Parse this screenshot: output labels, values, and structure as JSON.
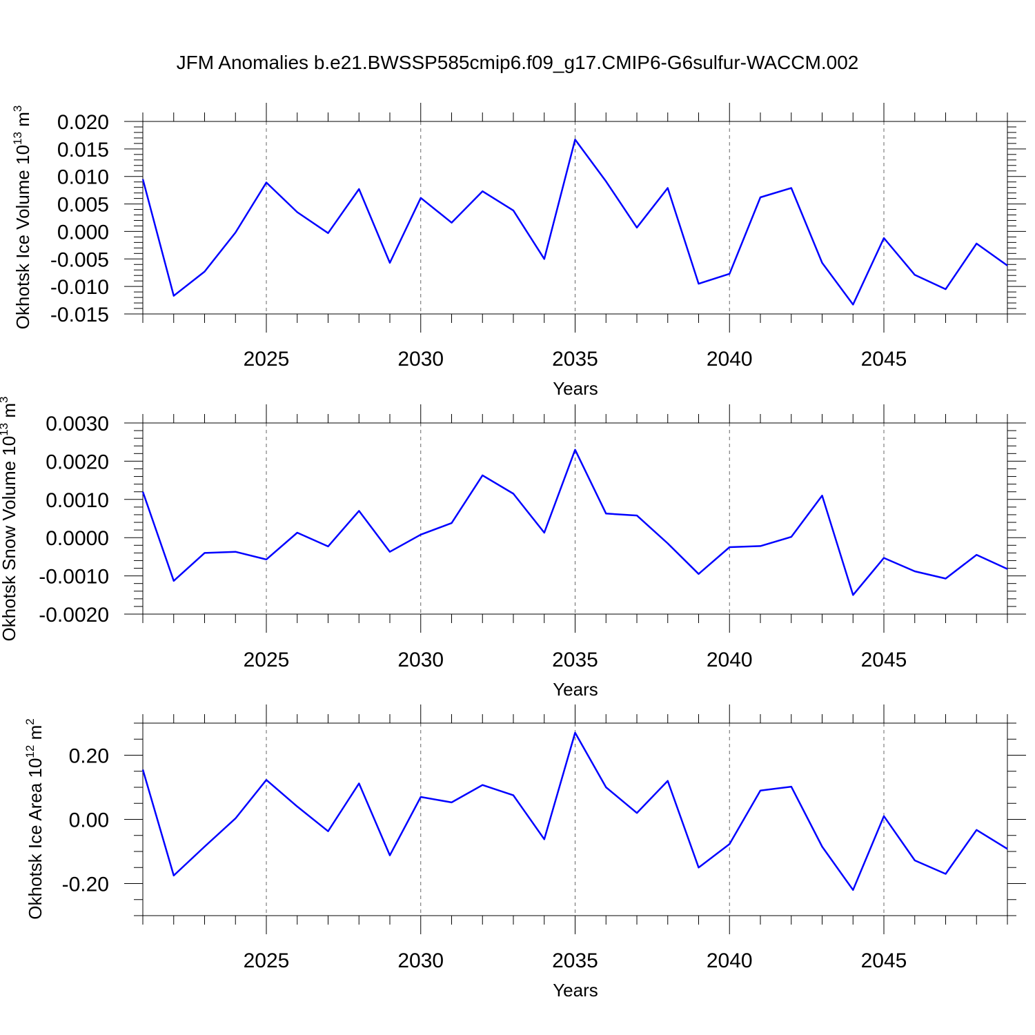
{
  "title": "JFM Anomalies b.e21.BWSSP585cmip6.f09_g17.CMIP6-G6sulfur-WACCM.002",
  "line_color": "#0000ff",
  "chart_data": [
    {
      "type": "line",
      "xlabel": "Years",
      "ylabel": {
        "text": "Okhotsk Ice Volume 10",
        "exp": "13",
        "unit": "m",
        "unit_exp": "3"
      },
      "xlim": [
        2021,
        2049
      ],
      "ylim": [
        -0.015,
        0.02
      ],
      "yticks": [
        -0.015,
        -0.01,
        -0.005,
        0.0,
        0.005,
        0.01,
        0.015,
        0.02
      ],
      "ytick_labels": [
        "-0.015",
        "-0.010",
        "-0.005",
        "0.000",
        "0.005",
        "0.010",
        "0.015",
        "0.020"
      ],
      "yminor": 0.001,
      "xticks": [
        2025,
        2030,
        2035,
        2040,
        2045
      ],
      "xtick_labels": [
        "2025",
        "2030",
        "2035",
        "2040",
        "2045"
      ],
      "x": [
        2021,
        2022,
        2023,
        2024,
        2025,
        2026,
        2027,
        2028,
        2029,
        2030,
        2031,
        2032,
        2033,
        2034,
        2035,
        2036,
        2037,
        2038,
        2039,
        2040,
        2041,
        2042,
        2043,
        2044,
        2045,
        2046,
        2047,
        2048,
        2049
      ],
      "values": [
        0.0095,
        -0.0117,
        -0.0073,
        -0.0002,
        0.0089,
        0.0035,
        -0.0003,
        0.0077,
        -0.0057,
        0.0061,
        0.0016,
        0.0073,
        0.0038,
        -0.005,
        0.0167,
        0.0091,
        0.0007,
        0.0079,
        -0.0095,
        -0.0077,
        0.0062,
        0.0079,
        -0.0057,
        -0.0133,
        -0.0012,
        -0.0079,
        -0.0105,
        -0.0022,
        -0.0062
      ]
    },
    {
      "type": "line",
      "xlabel": "Years",
      "ylabel": {
        "text": "Okhotsk Snow Volume 10",
        "exp": "13",
        "unit": "m",
        "unit_exp": "3"
      },
      "xlim": [
        2021,
        2049
      ],
      "ylim": [
        -0.002,
        0.003
      ],
      "yticks": [
        -0.002,
        -0.001,
        0.0,
        0.001,
        0.002,
        0.003
      ],
      "ytick_labels": [
        "-0.0020",
        "-0.0010",
        "0.0000",
        "0.0010",
        "0.0020",
        "0.0030"
      ],
      "yminor": 0.0002,
      "xticks": [
        2025,
        2030,
        2035,
        2040,
        2045
      ],
      "xtick_labels": [
        "2025",
        "2030",
        "2035",
        "2040",
        "2045"
      ],
      "x": [
        2021,
        2022,
        2023,
        2024,
        2025,
        2026,
        2027,
        2028,
        2029,
        2030,
        2031,
        2032,
        2033,
        2034,
        2035,
        2036,
        2037,
        2038,
        2039,
        2040,
        2041,
        2042,
        2043,
        2044,
        2045,
        2046,
        2047,
        2048,
        2049
      ],
      "values": [
        0.0012,
        -0.00113,
        -0.0004,
        -0.00037,
        -0.00057,
        0.00013,
        -0.00023,
        0.0007,
        -0.00037,
        8e-05,
        0.00038,
        0.00163,
        0.00115,
        0.00013,
        0.0023,
        0.00063,
        0.00058,
        -0.00015,
        -0.00095,
        -0.00025,
        -0.00022,
        2e-05,
        0.0011,
        -0.0015,
        -0.00053,
        -0.00088,
        -0.00107,
        -0.00045,
        -0.00082
      ]
    },
    {
      "type": "line",
      "xlabel": "Years",
      "ylabel": {
        "text": "Okhotsk Ice Area 10",
        "exp": "12",
        "unit": "m",
        "unit_exp": "2"
      },
      "xlim": [
        2021,
        2049
      ],
      "ylim": [
        -0.3,
        0.3
      ],
      "yticks": [
        -0.2,
        0.0,
        0.2
      ],
      "ytick_labels": [
        "-0.20",
        "0.00",
        "0.20"
      ],
      "yminor": 0.05,
      "xticks": [
        2025,
        2030,
        2035,
        2040,
        2045
      ],
      "xtick_labels": [
        "2025",
        "2030",
        "2035",
        "2040",
        "2045"
      ],
      "x": [
        2021,
        2022,
        2023,
        2024,
        2025,
        2026,
        2027,
        2028,
        2029,
        2030,
        2031,
        2032,
        2033,
        2034,
        2035,
        2036,
        2037,
        2038,
        2039,
        2040,
        2041,
        2042,
        2043,
        2044,
        2045,
        2046,
        2047,
        2048,
        2049
      ],
      "values": [
        0.155,
        -0.175,
        -0.085,
        0.003,
        0.123,
        0.04,
        -0.037,
        0.112,
        -0.112,
        0.07,
        0.053,
        0.107,
        0.075,
        -0.062,
        0.27,
        0.1,
        0.02,
        0.12,
        -0.15,
        -0.077,
        0.09,
        0.102,
        -0.085,
        -0.22,
        0.01,
        -0.128,
        -0.17,
        -0.033,
        -0.092
      ]
    }
  ]
}
